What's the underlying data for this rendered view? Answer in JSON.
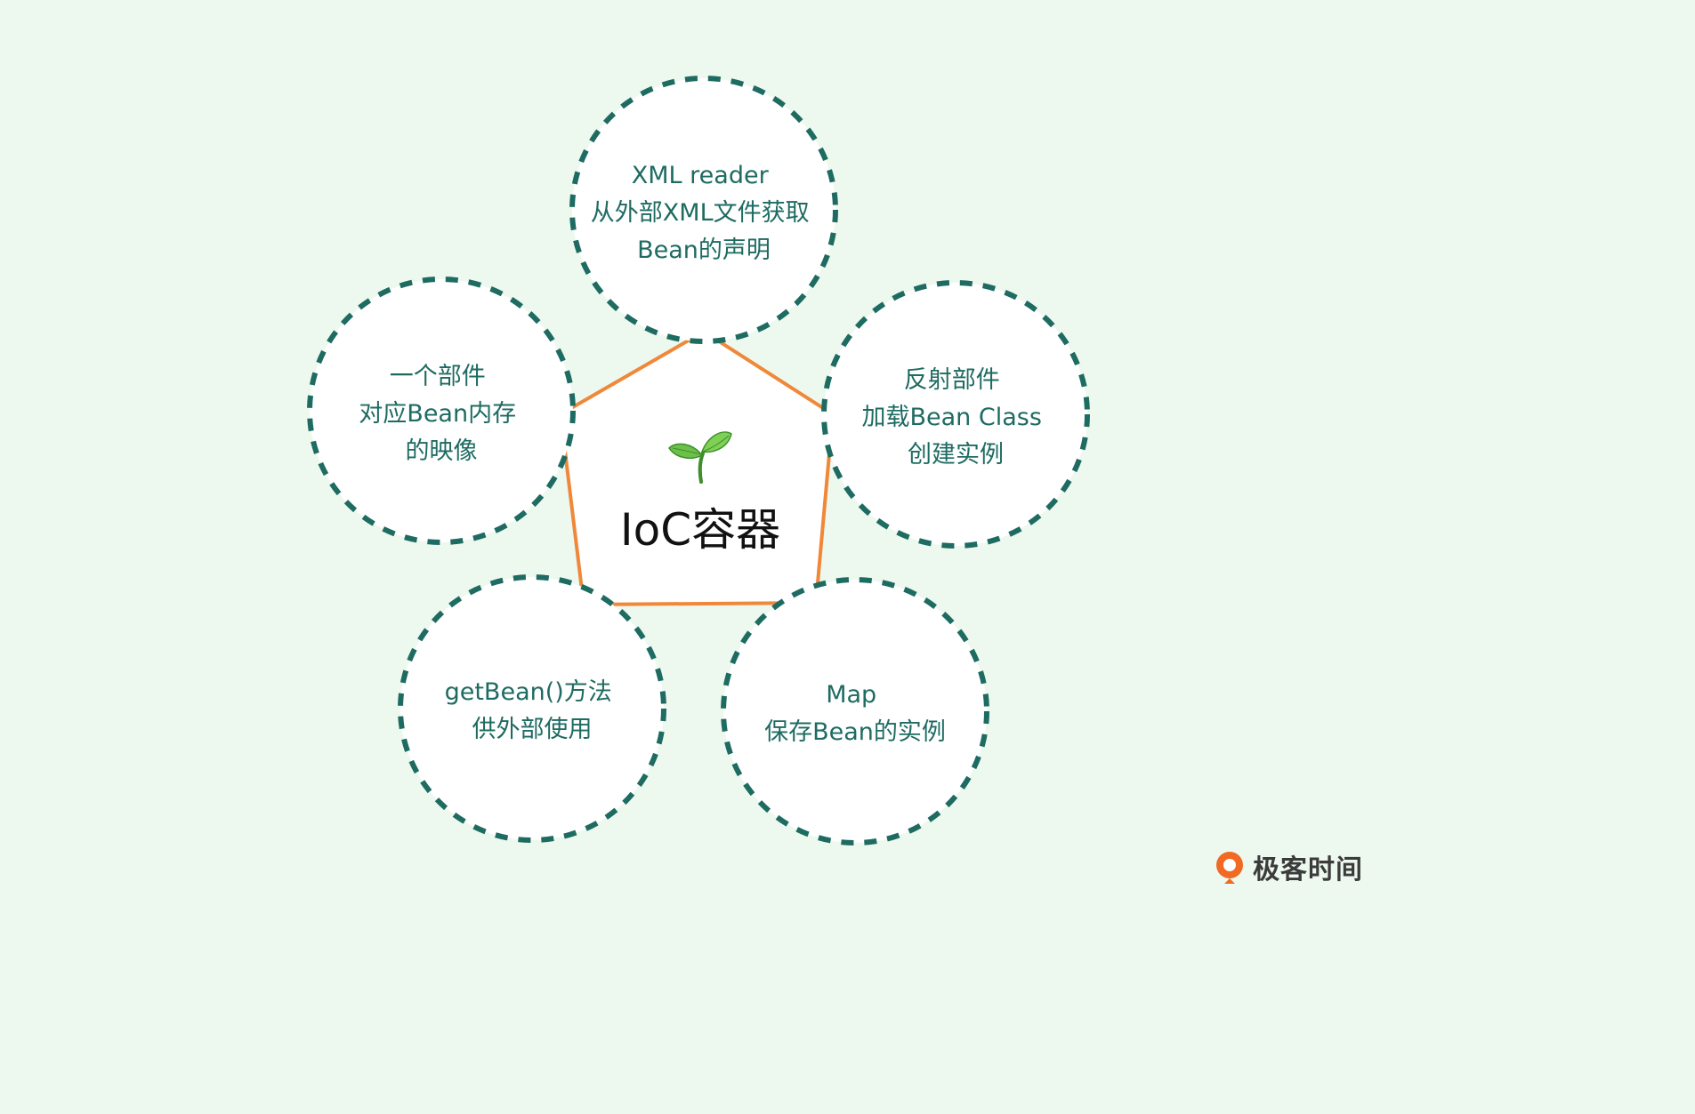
{
  "colors": {
    "background": "#edf8ee",
    "node_border": "#1e6b62",
    "node_text": "#1e6b62",
    "pentagon_stroke": "#f0883a",
    "center_text": "#111111"
  },
  "center": {
    "title": "IoC容器",
    "icon": "sprout-icon"
  },
  "nodes": [
    {
      "id": "xml-reader",
      "lines": [
        "XML reader",
        "从外部XML文件获取",
        "Bean的声明"
      ]
    },
    {
      "id": "reflection",
      "lines": [
        "反射部件",
        "加载Bean Class",
        "创建实例"
      ]
    },
    {
      "id": "map",
      "lines": [
        "Map",
        "保存Bean的实例"
      ]
    },
    {
      "id": "get-bean",
      "lines": [
        "getBean()方法",
        "供外部使用"
      ]
    },
    {
      "id": "component",
      "lines": [
        "一个部件",
        "对应Bean内存",
        "的映像"
      ]
    }
  ],
  "brand": {
    "logo": "geektime-logo",
    "text": "极客时间"
  }
}
